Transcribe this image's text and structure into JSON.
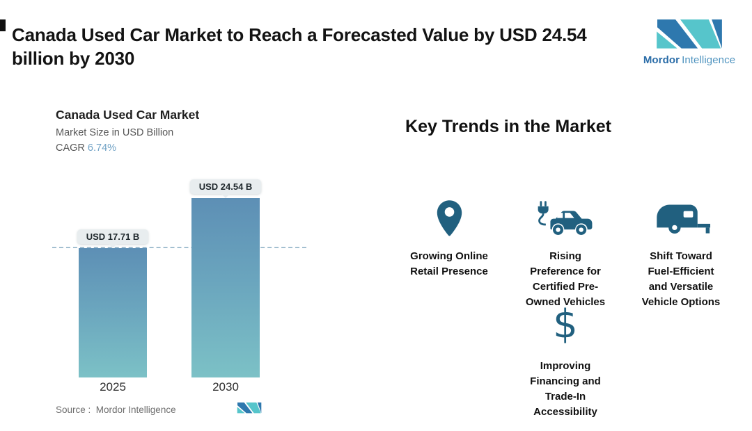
{
  "header": {
    "title": "Canada Used Car Market to Reach a Forecasted Value by USD 24.54\nbillion by 2030",
    "brand": {
      "name_bold": "Mordor",
      "name_regular": "Intelligence"
    }
  },
  "chart": {
    "title": "Canada Used Car Market",
    "subtitle": "Market Size in USD Billion",
    "cagr_label": "CAGR",
    "cagr_value": "6.74%",
    "source_label": "Source :  Mordor Intelligence"
  },
  "chart_data": {
    "type": "bar",
    "title": "Canada Used Car Market",
    "ylabel": "Market Size in USD Billion",
    "unit": "USD Billion",
    "cagr_percent": 6.74,
    "categories": [
      "2025",
      "2030"
    ],
    "values": [
      17.71,
      24.54
    ],
    "value_labels": [
      "USD 17.71 B",
      "USD 24.54 B"
    ],
    "ylim": [
      0,
      26
    ],
    "reference_line": 17.71,
    "grid": false,
    "legend": "none",
    "bar_gradient_top": "#5d8fb5",
    "bar_gradient_bottom": "#7cc1c6"
  },
  "trends": {
    "heading": "Key Trends in the Market",
    "items": [
      {
        "icon": "location-pin-icon",
        "label": "Growing Online\nRetail Presence"
      },
      {
        "icon": "electric-car-icon",
        "label": "Rising\nPreference for\nCertified Pre-\nOwned Vehicles"
      },
      {
        "icon": "camper-trailer-icon",
        "label": "Shift Toward\nFuel-Efficient\nand Versatile\nVehicle Options"
      },
      {
        "icon": "dollar-sign-icon",
        "label": "Improving\nFinancing and\nTrade-In\nAccessibility",
        "glyph": "$"
      }
    ]
  },
  "colors": {
    "icon_teal": "#21607f",
    "brand_dark_blue": "#2e78ae",
    "brand_teal": "#56c5cb",
    "cagr_blue": "#72a3c6",
    "dashed_line": "#a3bfd0"
  }
}
